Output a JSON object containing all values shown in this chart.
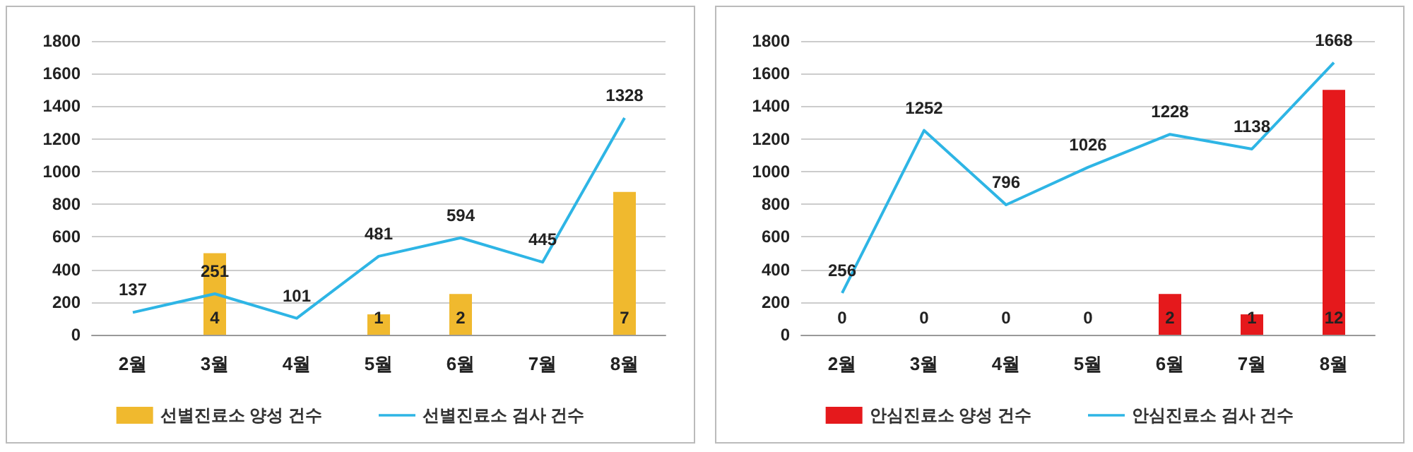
{
  "chart_data": [
    {
      "type": "bar",
      "categories": [
        "2월",
        "3월",
        "4월",
        "5월",
        "6월",
        "7월",
        "8월"
      ],
      "series": [
        {
          "name": "선별진료소 양성 건수",
          "axis": "y2",
          "color": "#f0b92e",
          "values": [
            null,
            4,
            null,
            1,
            2,
            null,
            7
          ]
        },
        {
          "name": "선별진료소 검사 건수",
          "type": "line",
          "color": "#2eb5e5",
          "values": [
            137,
            251,
            101,
            481,
            594,
            445,
            1328
          ]
        }
      ],
      "ylim": [
        0,
        1800
      ],
      "yticks": [
        0,
        200,
        400,
        600,
        800,
        1000,
        1200,
        1400,
        1600,
        1800
      ],
      "y2lim": [
        0,
        14.4
      ],
      "tick_labels": "xy",
      "grid": "y",
      "legend": "bottom",
      "marker": "none",
      "data_labels": true
    },
    {
      "type": "bar",
      "categories": [
        "2월",
        "3월",
        "4월",
        "5월",
        "6월",
        "7월",
        "8월"
      ],
      "series": [
        {
          "name": "안심진료소 양성 건수",
          "axis": "y2",
          "color": "#e5191c",
          "values": [
            0,
            0,
            0,
            0,
            2,
            1,
            12
          ]
        },
        {
          "name": "안심진료소 검사 건수",
          "type": "line",
          "color": "#2eb5e5",
          "values": [
            256,
            1252,
            796,
            1026,
            1228,
            1138,
            1668
          ]
        }
      ],
      "ylim": [
        0,
        1800
      ],
      "yticks": [
        0,
        200,
        400,
        600,
        800,
        1000,
        1200,
        1400,
        1600,
        1800
      ],
      "y2lim": [
        0,
        14.4
      ],
      "tick_labels": "xy",
      "grid": "y",
      "legend": "bottom",
      "marker": "none",
      "data_labels": true
    }
  ]
}
